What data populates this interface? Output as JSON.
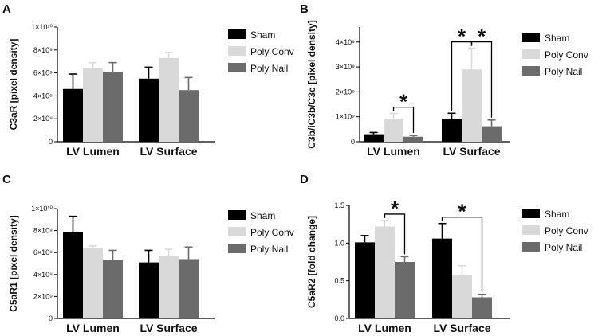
{
  "colors": {
    "Sham": "#000000",
    "Poly Conv": "#d9d9d9",
    "Poly Nail": "#6b6b6b"
  },
  "chart_data": [
    {
      "panel": "A",
      "type": "bar",
      "title": "",
      "xlabel": "",
      "ylabel": "C3aR [pixel density]",
      "categories": [
        "LV Lumen",
        "LV Surface"
      ],
      "series": [
        {
          "name": "Sham",
          "values": [
            4.6,
            5.5
          ],
          "errors": [
            1.3,
            1.0
          ]
        },
        {
          "name": "Poly Conv",
          "values": [
            6.4,
            7.3
          ],
          "errors": [
            0.5,
            0.5
          ]
        },
        {
          "name": "Poly Nail",
          "values": [
            6.1,
            4.5
          ],
          "errors": [
            0.8,
            1.1
          ]
        }
      ],
      "ylim": [
        0,
        10
      ],
      "ytick_values": [
        0,
        2,
        4,
        6,
        8,
        10
      ],
      "ytick_labels": [
        "0",
        "2×10⁹",
        "4×10⁹",
        "6×10⁹",
        "8×10⁹",
        "1×10¹⁰"
      ],
      "significance": []
    },
    {
      "panel": "B",
      "type": "bar",
      "title": "",
      "xlabel": "",
      "ylabel": "C3b/iC3b/C3c [pixel density]",
      "categories": [
        "LV Lumen",
        "LV Surface"
      ],
      "series": [
        {
          "name": "Sham",
          "values": [
            0.3,
            0.92
          ],
          "errors": [
            0.07,
            0.22
          ]
        },
        {
          "name": "Poly Conv",
          "values": [
            0.93,
            2.9
          ],
          "errors": [
            0.2,
            0.85
          ]
        },
        {
          "name": "Poly Nail",
          "values": [
            0.2,
            0.62
          ],
          "errors": [
            0.05,
            0.25
          ]
        }
      ],
      "ylim": [
        0,
        4.6
      ],
      "ytick_values": [
        0,
        1,
        2,
        3,
        4
      ],
      "ytick_labels": [
        "0",
        "1×10⁹",
        "2×10⁹",
        "3×10⁹",
        "4×10⁹"
      ],
      "significance": [
        {
          "category": 0,
          "from": 1,
          "to": 2,
          "label": "*"
        },
        {
          "category": 1,
          "from": 0,
          "to": 1,
          "label": "*"
        },
        {
          "category": 1,
          "from": 1,
          "to": 2,
          "label": "*"
        }
      ]
    },
    {
      "panel": "C",
      "type": "bar",
      "title": "",
      "xlabel": "",
      "ylabel": "C5aR1 [pixel density]",
      "categories": [
        "LV Lumen",
        "LV Surface"
      ],
      "series": [
        {
          "name": "Sham",
          "values": [
            7.9,
            5.1
          ],
          "errors": [
            1.4,
            1.1
          ]
        },
        {
          "name": "Poly Conv",
          "values": [
            6.4,
            5.7
          ],
          "errors": [
            0.2,
            0.6
          ]
        },
        {
          "name": "Poly Nail",
          "values": [
            5.3,
            5.4
          ],
          "errors": [
            0.9,
            1.1
          ]
        }
      ],
      "ylim": [
        0,
        10
      ],
      "ytick_values": [
        0,
        2,
        4,
        6,
        8,
        10
      ],
      "ytick_labels": [
        "0",
        "2×10⁹",
        "4×10⁹",
        "6×10⁹",
        "8×10⁹",
        "1×10¹⁰"
      ],
      "significance": []
    },
    {
      "panel": "D",
      "type": "bar",
      "title": "",
      "xlabel": "",
      "ylabel": "C5aR2 [fold change]",
      "categories": [
        "LV Lumen",
        "LV Surface"
      ],
      "series": [
        {
          "name": "Sham",
          "values": [
            1.01,
            1.06
          ],
          "errors": [
            0.09,
            0.2
          ]
        },
        {
          "name": "Poly Conv",
          "values": [
            1.22,
            0.57
          ],
          "errors": [
            0.08,
            0.13
          ]
        },
        {
          "name": "Poly Nail",
          "values": [
            0.75,
            0.28
          ],
          "errors": [
            0.07,
            0.04
          ]
        }
      ],
      "ylim": [
        0,
        1.5
      ],
      "ytick_values": [
        0,
        0.5,
        1.0,
        1.5
      ],
      "ytick_labels": [
        "0.0",
        "0.5",
        "1.0",
        "1.5"
      ],
      "significance": [
        {
          "category": 0,
          "from": 1,
          "to": 2,
          "label": "*"
        },
        {
          "category": 1,
          "from": 0,
          "to": 2,
          "label": "*"
        }
      ]
    }
  ]
}
